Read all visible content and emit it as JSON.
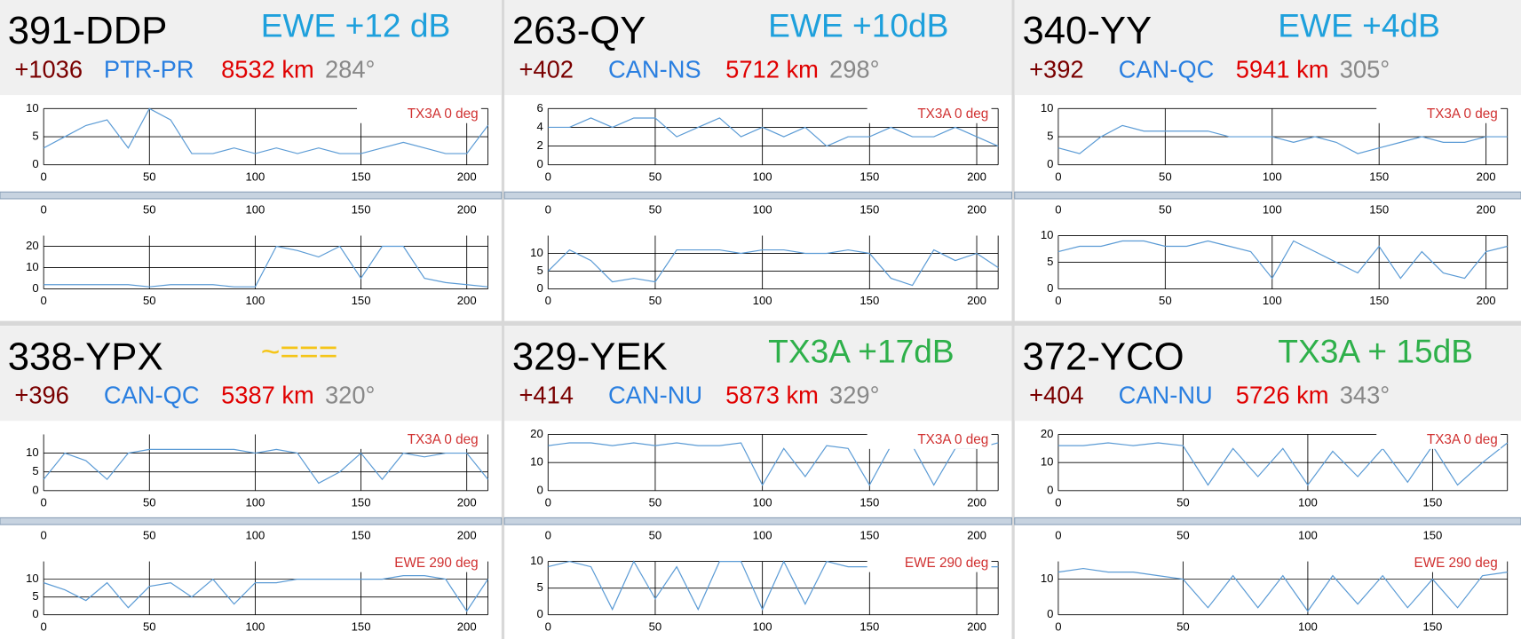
{
  "panels": [
    {
      "header": {
        "call": "391-DDP",
        "note": "EWE +12 dB",
        "note_color": "#1ea0dc",
        "offset": "+1036",
        "location": "PTR-PR",
        "distance": "8532 km",
        "bearing": "284°"
      },
      "charts": [
        {
          "type": "line",
          "label": "TX3A 0 deg",
          "color": "#5b9bd5",
          "x": [
            0,
            10,
            20,
            30,
            40,
            50,
            60,
            70,
            80,
            90,
            100,
            110,
            120,
            130,
            140,
            150,
            160,
            170,
            180,
            190,
            200,
            210
          ],
          "values": [
            3,
            5,
            7,
            8,
            3,
            10,
            8,
            2,
            2,
            3,
            2,
            3,
            2,
            3,
            2,
            2,
            3,
            4,
            3,
            2,
            2,
            7
          ],
          "xlim": [
            0,
            210
          ],
          "ylim": [
            0,
            10
          ],
          "xticks": [
            0,
            50,
            100,
            150,
            200
          ],
          "yticks": [
            0,
            5,
            10
          ],
          "grid": true
        },
        {
          "type": "line",
          "color": "#5b9bd5",
          "x": [
            0,
            10,
            20,
            30,
            40,
            50,
            60,
            70,
            80,
            90,
            100,
            110,
            120,
            130,
            140,
            150,
            160,
            170,
            180,
            190,
            200,
            210
          ],
          "values": [
            2,
            2,
            2,
            2,
            2,
            1,
            2,
            2,
            2,
            1,
            1,
            20,
            18,
            15,
            20,
            5,
            20,
            20,
            5,
            3,
            2,
            1
          ],
          "xlim": [
            0,
            210
          ],
          "ylim": [
            0,
            25
          ],
          "xticks": [
            0,
            50,
            100,
            150,
            200
          ],
          "yticks": [
            0,
            10,
            20
          ],
          "grid": true
        }
      ]
    },
    {
      "header": {
        "call": "263-QY",
        "note": "EWE +10dB",
        "note_color": "#1ea0dc",
        "offset": "+402",
        "location": "CAN-NS",
        "distance": "5712 km",
        "bearing": "298°"
      },
      "charts": [
        {
          "type": "line",
          "label": "TX3A 0 deg",
          "color": "#5b9bd5",
          "x": [
            0,
            10,
            20,
            30,
            40,
            50,
            60,
            70,
            80,
            90,
            100,
            110,
            120,
            130,
            140,
            150,
            160,
            170,
            180,
            190,
            200,
            210
          ],
          "values": [
            4,
            4,
            5,
            4,
            5,
            5,
            3,
            4,
            5,
            3,
            4,
            3,
            4,
            2,
            3,
            3,
            4,
            3,
            3,
            4,
            3,
            2
          ],
          "xlim": [
            0,
            210
          ],
          "ylim": [
            0,
            6
          ],
          "xticks": [
            0,
            50,
            100,
            150,
            200
          ],
          "yticks": [
            0,
            2,
            4,
            6
          ],
          "grid": true
        },
        {
          "type": "line",
          "color": "#5b9bd5",
          "x": [
            0,
            10,
            20,
            30,
            40,
            50,
            60,
            70,
            80,
            90,
            100,
            110,
            120,
            130,
            140,
            150,
            160,
            170,
            180,
            190,
            200,
            210
          ],
          "values": [
            5,
            11,
            8,
            2,
            3,
            2,
            11,
            11,
            11,
            10,
            11,
            11,
            10,
            10,
            11,
            10,
            3,
            1,
            11,
            8,
            10,
            6
          ],
          "xlim": [
            0,
            210
          ],
          "ylim": [
            0,
            15
          ],
          "xticks": [
            0,
            50,
            100,
            150,
            200
          ],
          "yticks": [
            0,
            5,
            10
          ],
          "grid": true
        }
      ]
    },
    {
      "header": {
        "call": "340-YY",
        "note": "EWE +4dB",
        "note_color": "#1ea0dc",
        "offset": "+392",
        "location": "CAN-QC",
        "distance": "5941 km",
        "bearing": "305°"
      },
      "charts": [
        {
          "type": "line",
          "label": "TX3A 0 deg",
          "color": "#5b9bd5",
          "x": [
            0,
            10,
            20,
            30,
            40,
            50,
            60,
            70,
            80,
            90,
            100,
            110,
            120,
            130,
            140,
            150,
            160,
            170,
            180,
            190,
            200,
            210
          ],
          "values": [
            3,
            2,
            5,
            7,
            6,
            6,
            6,
            6,
            5,
            5,
            5,
            4,
            5,
            4,
            2,
            3,
            4,
            5,
            4,
            4,
            5,
            5
          ],
          "xlim": [
            0,
            210
          ],
          "ylim": [
            0,
            10
          ],
          "xticks": [
            0,
            50,
            100,
            150,
            200
          ],
          "yticks": [
            0,
            5,
            10
          ],
          "grid": true
        },
        {
          "type": "line",
          "color": "#5b9bd5",
          "x": [
            0,
            10,
            20,
            30,
            40,
            50,
            60,
            70,
            80,
            90,
            100,
            110,
            120,
            130,
            140,
            150,
            160,
            170,
            180,
            190,
            200,
            210
          ],
          "values": [
            7,
            8,
            8,
            9,
            9,
            8,
            8,
            9,
            8,
            7,
            2,
            9,
            7,
            5,
            3,
            8,
            2,
            7,
            3,
            2,
            7,
            8
          ],
          "xlim": [
            0,
            210
          ],
          "ylim": [
            0,
            10
          ],
          "xticks": [
            0,
            50,
            100,
            150,
            200
          ],
          "yticks": [
            0,
            5,
            10
          ],
          "grid": true
        }
      ]
    },
    {
      "header": {
        "call": "338-YPX",
        "note": "~===",
        "note_color": "#f5c518",
        "offset": "+396",
        "location": "CAN-QC",
        "distance": "5387 km",
        "bearing": "320°"
      },
      "charts": [
        {
          "type": "line",
          "label": "TX3A 0 deg",
          "color": "#5b9bd5",
          "x": [
            0,
            10,
            20,
            30,
            40,
            50,
            60,
            70,
            80,
            90,
            100,
            110,
            120,
            130,
            140,
            150,
            160,
            170,
            180,
            190,
            200,
            210
          ],
          "values": [
            3,
            10,
            8,
            3,
            10,
            11,
            11,
            11,
            11,
            11,
            10,
            11,
            10,
            2,
            5,
            10,
            3,
            10,
            9,
            10,
            10,
            3
          ],
          "xlim": [
            0,
            210
          ],
          "ylim": [
            0,
            15
          ],
          "xticks": [
            0,
            50,
            100,
            150,
            200
          ],
          "yticks": [
            0,
            5,
            10
          ],
          "grid": true
        },
        {
          "type": "line",
          "label": "EWE 290 deg",
          "color": "#5b9bd5",
          "x": [
            0,
            10,
            20,
            30,
            40,
            50,
            60,
            70,
            80,
            90,
            100,
            110,
            120,
            130,
            140,
            150,
            160,
            170,
            180,
            190,
            200,
            210
          ],
          "values": [
            9,
            7,
            4,
            9,
            2,
            8,
            9,
            5,
            10,
            3,
            9,
            9,
            10,
            10,
            10,
            10,
            10,
            11,
            11,
            10,
            1,
            10
          ],
          "xlim": [
            0,
            210
          ],
          "ylim": [
            0,
            15
          ],
          "xticks": [
            0,
            50,
            100,
            150,
            200
          ],
          "yticks": [
            0,
            5,
            10
          ],
          "grid": true
        }
      ]
    },
    {
      "header": {
        "call": "329-YEK",
        "note": "TX3A +17dB",
        "note_color": "#2eb04a",
        "offset": "+414",
        "location": "CAN-NU",
        "distance": "5873 km",
        "bearing": "329°"
      },
      "charts": [
        {
          "type": "line",
          "label": "TX3A 0 deg",
          "color": "#5b9bd5",
          "x": [
            0,
            10,
            20,
            30,
            40,
            50,
            60,
            70,
            80,
            90,
            100,
            110,
            120,
            130,
            140,
            150,
            160,
            170,
            180,
            190,
            200,
            210
          ],
          "values": [
            16,
            17,
            17,
            16,
            17,
            16,
            17,
            16,
            16,
            17,
            2,
            15,
            5,
            16,
            15,
            2,
            16,
            16,
            2,
            15,
            15,
            17
          ],
          "xlim": [
            0,
            210
          ],
          "ylim": [
            0,
            20
          ],
          "xticks": [
            0,
            50,
            100,
            150,
            200
          ],
          "yticks": [
            0,
            10,
            20
          ],
          "grid": true
        },
        {
          "type": "line",
          "label": "EWE 290 deg",
          "color": "#5b9bd5",
          "x": [
            0,
            10,
            20,
            30,
            40,
            50,
            60,
            70,
            80,
            90,
            100,
            110,
            120,
            130,
            140,
            150,
            160,
            170,
            180,
            190,
            200,
            210
          ],
          "values": [
            9,
            10,
            9,
            1,
            10,
            3,
            9,
            1,
            10,
            10,
            1,
            10,
            2,
            10,
            9,
            9,
            10,
            9,
            10,
            9,
            9,
            9
          ],
          "xlim": [
            0,
            210
          ],
          "ylim": [
            0,
            10
          ],
          "xticks": [
            0,
            50,
            100,
            150,
            200
          ],
          "yticks": [
            0,
            5,
            10
          ],
          "grid": true
        }
      ]
    },
    {
      "header": {
        "call": "372-YCO",
        "note": "TX3A + 15dB",
        "note_color": "#2eb04a",
        "offset": "+404",
        "location": "CAN-NU",
        "distance": "5726 km",
        "bearing": "343°"
      },
      "charts": [
        {
          "type": "line",
          "label": "TX3A 0 deg",
          "color": "#5b9bd5",
          "x": [
            0,
            10,
            20,
            30,
            40,
            50,
            60,
            70,
            80,
            90,
            100,
            110,
            120,
            130,
            140,
            150,
            160,
            170,
            180
          ],
          "values": [
            16,
            16,
            17,
            16,
            17,
            16,
            2,
            15,
            5,
            15,
            2,
            14,
            5,
            15,
            3,
            16,
            2,
            10,
            17
          ],
          "xlim": [
            0,
            180
          ],
          "ylim": [
            0,
            20
          ],
          "xticks": [
            0,
            50,
            100,
            150
          ],
          "yticks": [
            0,
            10,
            20
          ],
          "grid": true
        },
        {
          "type": "line",
          "label": "EWE 290 deg",
          "color": "#5b9bd5",
          "x": [
            0,
            10,
            20,
            30,
            40,
            50,
            60,
            70,
            80,
            90,
            100,
            110,
            120,
            130,
            140,
            150,
            160,
            170,
            180
          ],
          "values": [
            12,
            13,
            12,
            12,
            11,
            10,
            2,
            11,
            2,
            11,
            1,
            11,
            3,
            11,
            2,
            10,
            2,
            11,
            12
          ],
          "xlim": [
            0,
            180
          ],
          "ylim": [
            0,
            15
          ],
          "xticks": [
            0,
            50,
            100,
            150
          ],
          "yticks": [
            0,
            10
          ],
          "grid": true
        }
      ]
    }
  ]
}
